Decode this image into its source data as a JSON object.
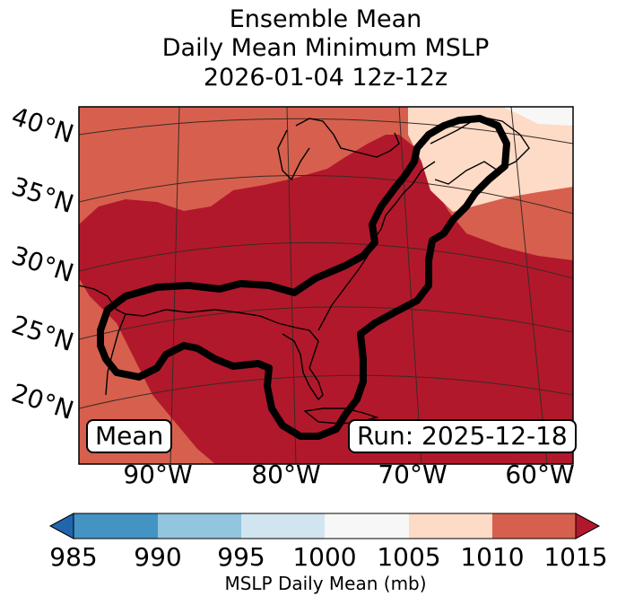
{
  "title": {
    "line1": "Ensemble Mean",
    "line2": "Daily Mean Minimum MSLP",
    "line3": "2026-01-04 12z-12z"
  },
  "map": {
    "lat_labels": [
      "40°N",
      "35°N",
      "30°N",
      "25°N",
      "20°N"
    ],
    "lon_labels": [
      "90°W",
      "80°W",
      "70°W",
      "60°W"
    ],
    "mean_box": "Mean",
    "run_box": "Run: 2025-12-18",
    "fill_colors": {
      "1000-1005": "#f7f7f7",
      "1005-1010": "#fddbc7",
      "1010-1015": "#d6604d",
      ">1015": "#b2182b"
    },
    "contour_color": "#000000",
    "land_outline_color": "#000000"
  },
  "colorbar": {
    "ticks": [
      "985",
      "990",
      "995",
      "1000",
      "1005",
      "1010",
      "1015"
    ],
    "label": "MSLP Daily Mean (mb)",
    "colors": [
      "#2166ac",
      "#4393c3",
      "#92c5de",
      "#d1e5f0",
      "#f7f7f7",
      "#fddbc7",
      "#d6604d",
      "#b2182b"
    ]
  }
}
